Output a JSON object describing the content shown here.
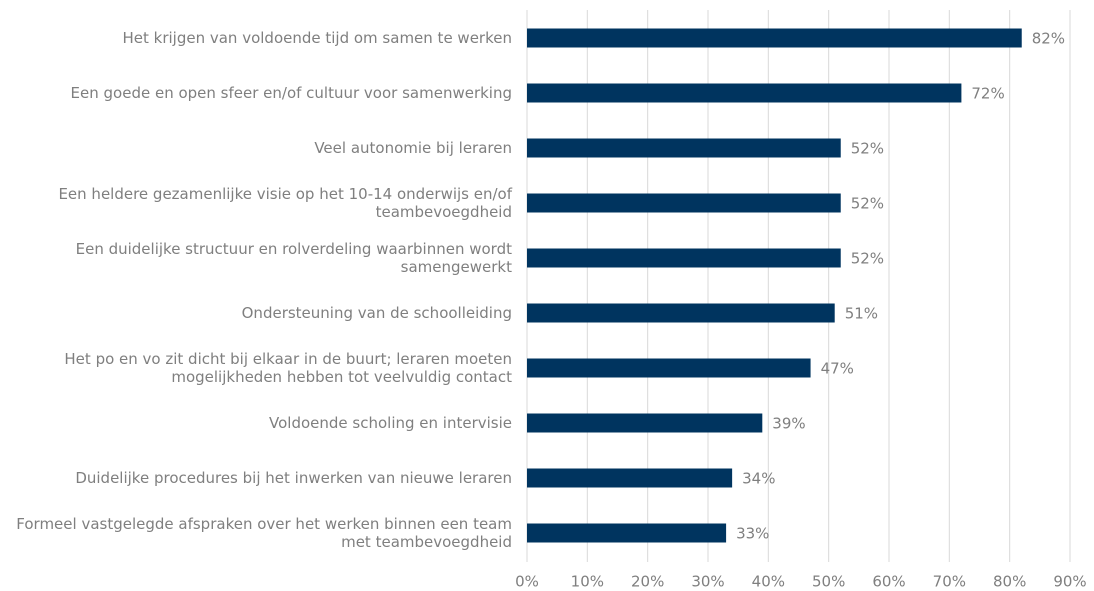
{
  "chart_data": {
    "type": "hbar",
    "categories": [
      "Het krijgen van voldoende tijd om samen te werken",
      "Een goede en open sfeer en/of cultuur voor samenwerking",
      "Veel autonomie bij leraren",
      "Een heldere gezamenlijke visie op het 10-14 onderwijs en/of teambevoegdheid",
      "Een duidelijke structuur en rolverdeling waarbinnen wordt samengewerkt",
      "Ondersteuning van de schoolleiding",
      "Het po en vo zit dicht bij elkaar in de buurt; leraren moeten mogelijkheden hebben tot veelvuldig contact",
      "Voldoende scholing en intervisie",
      "Duidelijke procedures bij het inwerken van nieuwe leraren",
      "Formeel vastgelegde afspraken over het werken binnen een team met teambevoegdheid"
    ],
    "values": [
      82,
      72,
      52,
      52,
      52,
      51,
      47,
      39,
      34,
      33
    ],
    "value_labels": [
      "82%",
      "72%",
      "52%",
      "52%",
      "52%",
      "51%",
      "47%",
      "39%",
      "34%",
      "33%"
    ],
    "color": "#00345f",
    "xlim": [
      0,
      90
    ],
    "xticks": [
      {
        "value": 0,
        "label": "0%"
      },
      {
        "value": 10,
        "label": "10%"
      },
      {
        "value": 20,
        "label": "20%"
      },
      {
        "value": 30,
        "label": "30%"
      },
      {
        "value": 40,
        "label": "40%"
      },
      {
        "value": 50,
        "label": "50%"
      },
      {
        "value": 60,
        "label": "60%"
      },
      {
        "value": 70,
        "label": "70%"
      },
      {
        "value": 80,
        "label": "80%"
      },
      {
        "value": 90,
        "label": "90%"
      }
    ],
    "grid": true
  }
}
